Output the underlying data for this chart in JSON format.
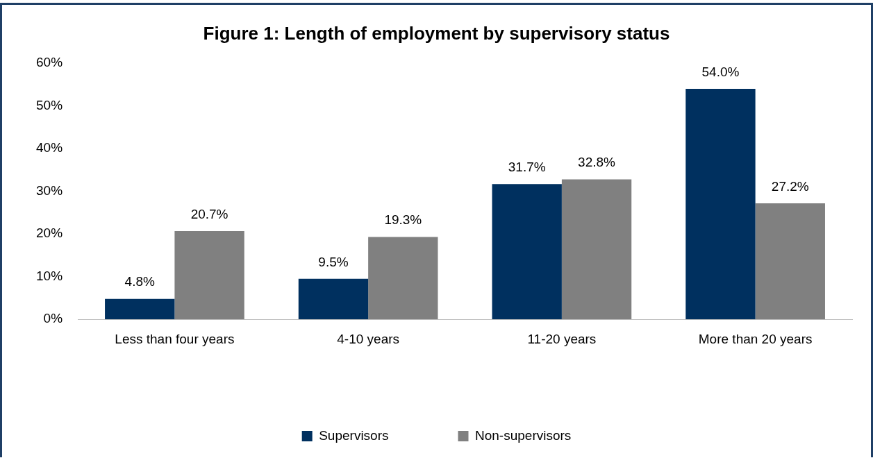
{
  "chart_data": {
    "type": "bar",
    "title": "Figure 1: Length of employment by supervisory status",
    "categories": [
      "Less than four years",
      "4-10 years",
      "11-20 years",
      "More than 20 years"
    ],
    "series": [
      {
        "name": "Supervisors",
        "color": "#00305f",
        "values": [
          4.8,
          9.5,
          31.7,
          54.0
        ],
        "value_labels": [
          "4.8%",
          "9.5%",
          "31.7%",
          "54.0%"
        ]
      },
      {
        "name": "Non-supervisors",
        "color": "#808080",
        "values": [
          20.7,
          19.3,
          32.8,
          27.2
        ],
        "value_labels": [
          "20.7%",
          "19.3%",
          "32.8%",
          "27.2%"
        ]
      }
    ],
    "ylim": [
      0,
      60
    ],
    "yticks": [
      {
        "value": 0,
        "label": "0%"
      },
      {
        "value": 10,
        "label": "10%"
      },
      {
        "value": 20,
        "label": "20%"
      },
      {
        "value": 30,
        "label": "30%"
      },
      {
        "value": 40,
        "label": "40%"
      },
      {
        "value": 50,
        "label": "50%"
      },
      {
        "value": 60,
        "label": "60%"
      }
    ],
    "grid": false,
    "legend": "bottom"
  }
}
